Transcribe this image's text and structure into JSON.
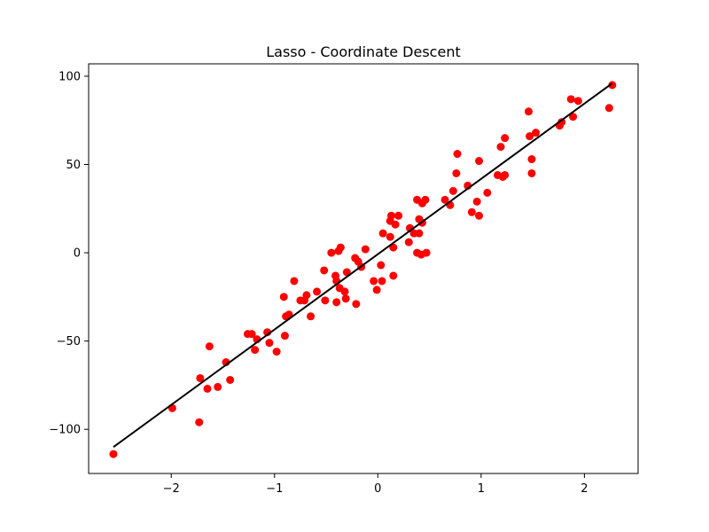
{
  "chart_data": {
    "type": "scatter",
    "title": "Lasso - Coordinate Descent",
    "xlabel": "",
    "ylabel": "",
    "xlim": [
      -2.8,
      2.52
    ],
    "ylim": [
      -125,
      107
    ],
    "xticks": [
      -2,
      -1,
      0,
      1,
      2
    ],
    "xtick_labels": [
      "−2",
      "−1",
      "0",
      "1",
      "2"
    ],
    "yticks": [
      -100,
      -50,
      0,
      50,
      100
    ],
    "ytick_labels": [
      "−100",
      "−50",
      "0",
      "50",
      "100"
    ],
    "grid": false,
    "colors": {
      "points": "#ff0000",
      "line": "#000000"
    },
    "series": [
      {
        "kind": "points",
        "points": [
          [
            -2.56,
            -114
          ],
          [
            -1.99,
            -88
          ],
          [
            -1.73,
            -96
          ],
          [
            -1.72,
            -71
          ],
          [
            -1.65,
            -77
          ],
          [
            -1.63,
            -53
          ],
          [
            -1.55,
            -76
          ],
          [
            -1.47,
            -62
          ],
          [
            -1.43,
            -72
          ],
          [
            -1.26,
            -46
          ],
          [
            -1.22,
            -46
          ],
          [
            -1.19,
            -55
          ],
          [
            -1.17,
            -49
          ],
          [
            -1.07,
            -45
          ],
          [
            -1.05,
            -51
          ],
          [
            -0.98,
            -56
          ],
          [
            -0.91,
            -25
          ],
          [
            -0.9,
            -47
          ],
          [
            -0.89,
            -36
          ],
          [
            -0.86,
            -35
          ],
          [
            -0.81,
            -16
          ],
          [
            -0.75,
            -27
          ],
          [
            -0.71,
            -27
          ],
          [
            -0.69,
            -24
          ],
          [
            -0.65,
            -36
          ],
          [
            -0.59,
            -22
          ],
          [
            -0.52,
            -10
          ],
          [
            -0.51,
            -27
          ],
          [
            -0.45,
            0
          ],
          [
            -0.41,
            -13
          ],
          [
            -0.4,
            -16
          ],
          [
            -0.4,
            -28
          ],
          [
            -0.38,
            1
          ],
          [
            -0.37,
            -20
          ],
          [
            -0.36,
            3
          ],
          [
            -0.32,
            -22
          ],
          [
            -0.31,
            -26
          ],
          [
            -0.3,
            -11
          ],
          [
            -0.22,
            -3
          ],
          [
            -0.21,
            -29
          ],
          [
            -0.19,
            -5
          ],
          [
            -0.16,
            -8
          ],
          [
            -0.12,
            2
          ],
          [
            -0.04,
            -16
          ],
          [
            -0.01,
            -21
          ],
          [
            0.03,
            -7
          ],
          [
            0.04,
            -16
          ],
          [
            0.05,
            11
          ],
          [
            0.12,
            9
          ],
          [
            0.12,
            18
          ],
          [
            0.13,
            21
          ],
          [
            0.15,
            3
          ],
          [
            0.15,
            -13
          ],
          [
            0.17,
            16
          ],
          [
            0.2,
            21
          ],
          [
            0.3,
            6
          ],
          [
            0.31,
            14
          ],
          [
            0.35,
            11
          ],
          [
            0.38,
            30
          ],
          [
            0.38,
            0
          ],
          [
            0.4,
            11
          ],
          [
            0.4,
            19
          ],
          [
            0.42,
            -1
          ],
          [
            0.43,
            17
          ],
          [
            0.43,
            28
          ],
          [
            0.46,
            30
          ],
          [
            0.47,
            0
          ],
          [
            0.65,
            30
          ],
          [
            0.7,
            27
          ],
          [
            0.73,
            35
          ],
          [
            0.76,
            45
          ],
          [
            0.77,
            56
          ],
          [
            0.87,
            38
          ],
          [
            0.91,
            23
          ],
          [
            0.96,
            29
          ],
          [
            0.98,
            52
          ],
          [
            0.98,
            21
          ],
          [
            1.06,
            34
          ],
          [
            1.16,
            44
          ],
          [
            1.19,
            60
          ],
          [
            1.21,
            43
          ],
          [
            1.23,
            65
          ],
          [
            1.23,
            44
          ],
          [
            1.46,
            80
          ],
          [
            1.47,
            66
          ],
          [
            1.49,
            53
          ],
          [
            1.49,
            45
          ],
          [
            1.53,
            68
          ],
          [
            1.76,
            72
          ],
          [
            1.78,
            74
          ],
          [
            1.87,
            87
          ],
          [
            1.89,
            77
          ],
          [
            1.94,
            86
          ],
          [
            2.24,
            82
          ],
          [
            2.27,
            95
          ]
        ]
      },
      {
        "kind": "line",
        "x": [
          -2.56,
          2.27
        ],
        "y": [
          -110,
          96
        ]
      }
    ]
  }
}
